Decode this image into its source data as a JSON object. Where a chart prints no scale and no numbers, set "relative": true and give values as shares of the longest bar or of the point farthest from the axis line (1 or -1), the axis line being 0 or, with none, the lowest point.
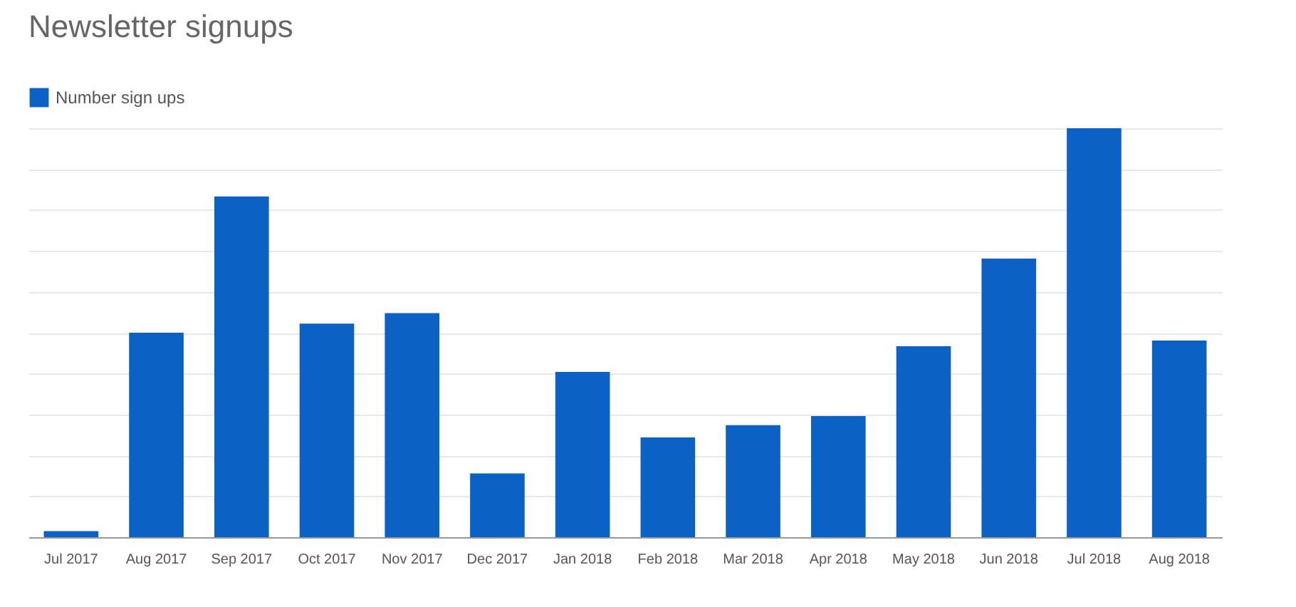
{
  "chart_data": {
    "type": "bar",
    "title": "Newsletter signups",
    "categories": [
      "Jul 2017",
      "Aug 2017",
      "Sep 2017",
      "Oct 2017",
      "Nov 2017",
      "Dec 2017",
      "Jan 2018",
      "Feb 2018",
      "Mar 2018",
      "Apr 2018",
      "May 2018",
      "Jun 2018",
      "Jul 2018",
      "Aug 2018"
    ],
    "series": [
      {
        "name": "Number sign ups",
        "color": "#0b62c4",
        "values": [
          0.015,
          0.5,
          0.833,
          0.522,
          0.548,
          0.156,
          0.404,
          0.244,
          0.274,
          0.296,
          0.467,
          0.681,
          1,
          0.481
        ]
      }
    ],
    "relative": true,
    "grid": "y",
    "legend": "top left"
  }
}
